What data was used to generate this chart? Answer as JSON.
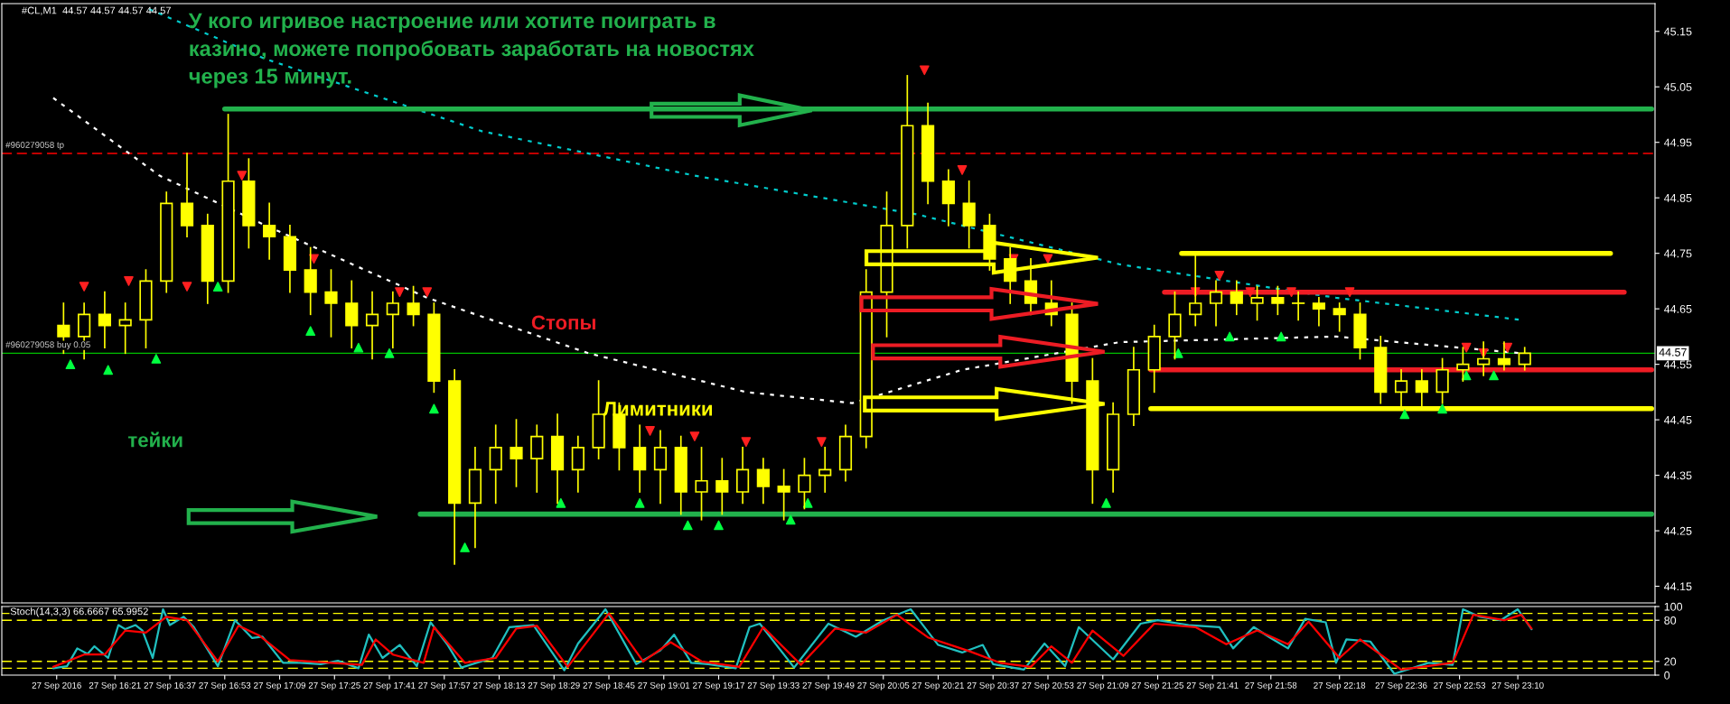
{
  "chart_data": [
    {
      "type": "candlestick",
      "color": "#ffff00",
      "x": [
        "2016-09-27T16:06",
        "2016-09-27T16:12",
        "2016-09-27T16:18",
        "2016-09-27T16:24",
        "2016-09-27T16:30",
        "2016-09-27T16:36",
        "2016-09-27T16:42",
        "2016-09-27T16:48",
        "2016-09-27T16:54",
        "2016-09-27T17:00",
        "2016-09-27T17:06",
        "2016-09-27T17:12",
        "2016-09-27T17:18",
        "2016-09-27T17:24",
        "2016-09-27T17:30",
        "2016-09-27T17:36",
        "2016-09-27T17:42",
        "2016-09-27T17:48",
        "2016-09-27T17:54",
        "2016-09-27T18:00",
        "2016-09-27T18:06",
        "2016-09-27T18:12",
        "2016-09-27T18:18",
        "2016-09-27T18:24",
        "2016-09-27T18:30",
        "2016-09-27T18:36",
        "2016-09-27T18:42",
        "2016-09-27T18:48",
        "2016-09-27T18:54",
        "2016-09-27T19:00",
        "2016-09-27T19:06",
        "2016-09-27T19:12",
        "2016-09-27T19:18",
        "2016-09-27T19:24",
        "2016-09-27T19:30",
        "2016-09-27T19:36",
        "2016-09-27T19:42",
        "2016-09-27T19:48",
        "2016-09-27T19:54",
        "2016-09-27T20:00",
        "2016-09-27T20:06",
        "2016-09-27T20:12",
        "2016-09-27T20:18",
        "2016-09-27T20:24",
        "2016-09-27T20:30",
        "2016-09-27T20:36",
        "2016-09-27T20:42",
        "2016-09-27T20:48",
        "2016-09-27T20:54",
        "2016-09-27T21:00",
        "2016-09-27T21:06",
        "2016-09-27T21:12",
        "2016-09-27T21:18",
        "2016-09-27T21:24",
        "2016-09-27T21:30",
        "2016-09-27T21:36",
        "2016-09-27T21:42",
        "2016-09-27T21:48",
        "2016-09-27T21:54",
        "2016-09-27T22:00",
        "2016-09-27T22:06",
        "2016-09-27T22:12",
        "2016-09-27T22:18",
        "2016-09-27T22:24",
        "2016-09-27T22:30",
        "2016-09-27T22:36",
        "2016-09-27T22:42",
        "2016-09-27T22:48",
        "2016-09-27T22:54",
        "2016-09-27T23:00",
        "2016-09-27T23:06",
        "2016-09-27T23:12"
      ],
      "ohlc": [
        [
          44.62,
          44.66,
          44.57,
          44.6
        ],
        [
          44.6,
          44.66,
          44.56,
          44.64
        ],
        [
          44.64,
          44.68,
          44.58,
          44.62
        ],
        [
          44.62,
          44.66,
          44.57,
          44.63
        ],
        [
          44.63,
          44.72,
          44.58,
          44.7
        ],
        [
          44.7,
          44.86,
          44.68,
          44.84
        ],
        [
          44.84,
          44.93,
          44.78,
          44.8
        ],
        [
          44.8,
          44.82,
          44.66,
          44.7
        ],
        [
          44.7,
          45.0,
          44.68,
          44.88
        ],
        [
          44.88,
          44.92,
          44.76,
          44.8
        ],
        [
          44.8,
          44.84,
          44.74,
          44.78
        ],
        [
          44.78,
          44.8,
          44.68,
          44.72
        ],
        [
          44.72,
          44.76,
          44.64,
          44.68
        ],
        [
          44.68,
          44.72,
          44.6,
          44.66
        ],
        [
          44.66,
          44.7,
          44.58,
          44.62
        ],
        [
          44.62,
          44.68,
          44.56,
          44.64
        ],
        [
          44.64,
          44.68,
          44.58,
          44.66
        ],
        [
          44.66,
          44.69,
          44.62,
          44.64
        ],
        [
          44.64,
          44.66,
          44.5,
          44.52
        ],
        [
          44.52,
          44.54,
          44.19,
          44.3
        ],
        [
          44.3,
          44.4,
          44.22,
          44.36
        ],
        [
          44.36,
          44.44,
          44.3,
          44.4
        ],
        [
          44.4,
          44.45,
          44.33,
          44.38
        ],
        [
          44.38,
          44.44,
          44.32,
          44.42
        ],
        [
          44.42,
          44.46,
          44.3,
          44.36
        ],
        [
          44.36,
          44.42,
          44.32,
          44.4
        ],
        [
          44.4,
          44.52,
          44.38,
          44.46
        ],
        [
          44.46,
          44.48,
          44.36,
          44.4
        ],
        [
          44.4,
          44.44,
          44.32,
          44.36
        ],
        [
          44.36,
          44.43,
          44.3,
          44.4
        ],
        [
          44.4,
          44.42,
          44.28,
          44.32
        ],
        [
          44.32,
          44.4,
          44.27,
          44.34
        ],
        [
          44.34,
          44.38,
          44.28,
          44.32
        ],
        [
          44.32,
          44.4,
          44.3,
          44.36
        ],
        [
          44.36,
          44.38,
          44.3,
          44.33
        ],
        [
          44.33,
          44.36,
          44.27,
          44.32
        ],
        [
          44.32,
          44.38,
          44.29,
          44.35
        ],
        [
          44.35,
          44.4,
          44.32,
          44.36
        ],
        [
          44.36,
          44.44,
          44.34,
          44.42
        ],
        [
          44.42,
          44.72,
          44.4,
          44.68
        ],
        [
          44.68,
          44.86,
          44.6,
          44.8
        ],
        [
          44.8,
          45.07,
          44.76,
          44.98
        ],
        [
          44.98,
          45.02,
          44.84,
          44.88
        ],
        [
          44.88,
          44.9,
          44.8,
          44.84
        ],
        [
          44.84,
          44.88,
          44.76,
          44.8
        ],
        [
          44.8,
          44.82,
          44.72,
          44.74
        ],
        [
          44.74,
          44.76,
          44.66,
          44.7
        ],
        [
          44.7,
          44.74,
          44.64,
          44.66
        ],
        [
          44.66,
          44.7,
          44.62,
          44.64
        ],
        [
          44.64,
          44.66,
          44.48,
          44.52
        ],
        [
          44.52,
          44.56,
          44.3,
          44.36
        ],
        [
          44.36,
          44.48,
          44.32,
          44.46
        ],
        [
          44.46,
          44.58,
          44.44,
          44.54
        ],
        [
          44.54,
          44.62,
          44.5,
          44.6
        ],
        [
          44.6,
          44.68,
          44.56,
          44.64
        ],
        [
          44.64,
          44.75,
          44.62,
          44.66
        ],
        [
          44.66,
          44.7,
          44.62,
          44.68
        ],
        [
          44.68,
          44.7,
          44.64,
          44.66
        ],
        [
          44.66,
          44.69,
          44.63,
          44.67
        ],
        [
          44.67,
          44.69,
          44.64,
          44.66
        ],
        [
          44.66,
          44.68,
          44.63,
          44.66
        ],
        [
          44.66,
          44.67,
          44.62,
          44.65
        ],
        [
          44.65,
          44.66,
          44.61,
          44.64
        ],
        [
          44.64,
          44.66,
          44.56,
          44.58
        ],
        [
          44.58,
          44.6,
          44.48,
          44.5
        ],
        [
          44.5,
          44.54,
          44.47,
          44.52
        ],
        [
          44.52,
          44.54,
          44.47,
          44.5
        ],
        [
          44.5,
          44.56,
          44.48,
          44.54
        ],
        [
          44.54,
          44.58,
          44.52,
          44.55
        ],
        [
          44.55,
          44.59,
          44.53,
          44.56
        ],
        [
          44.56,
          44.59,
          44.54,
          44.55
        ],
        [
          44.55,
          44.58,
          44.54,
          44.57
        ]
      ],
      "series": [
        {
          "type": "line",
          "color": "#00cccc",
          "line_style": "dotted",
          "x": [
            "2016-09-27T16:31",
            "2016-09-27T17:05",
            "2016-09-27T18:08",
            "2016-09-27T19:10",
            "2016-09-27T20:15",
            "2016-09-27T21:14",
            "2016-09-27T22:17",
            "2016-09-27T23:11"
          ],
          "values": [
            45.19,
            45.1,
            44.97,
            44.89,
            44.82,
            44.73,
            44.67,
            44.63
          ]
        },
        {
          "type": "line",
          "color": "#ffffff",
          "line_style": "dotted",
          "x": [
            "2016-09-27T16:03",
            "2016-09-27T16:34",
            "2016-09-27T17:05",
            "2016-09-27T17:52",
            "2016-09-27T18:39",
            "2016-09-27T19:25",
            "2016-09-27T19:56",
            "2016-09-27T20:28",
            "2016-09-27T21:14",
            "2016-09-27T22:17",
            "2016-09-27T23:11"
          ],
          "values": [
            45.03,
            44.89,
            44.8,
            44.67,
            44.57,
            44.5,
            44.48,
            44.54,
            44.59,
            44.6,
            44.57
          ]
        },
        {
          "type": "line",
          "color": "#22b14c",
          "line_style": "solid",
          "x": [
            "2016-09-27T16:53",
            "2016-09-27T23:49"
          ],
          "values": [
            45.01,
            45.01
          ]
        },
        {
          "type": "line",
          "color": "#22b14c",
          "line_style": "solid",
          "x": [
            "2016-09-27T17:50",
            "2016-09-27T23:49"
          ],
          "values": [
            44.28,
            44.28
          ]
        },
        {
          "type": "line",
          "color": "#ffff00",
          "line_style": "solid",
          "x": [
            "2016-09-27T21:32",
            "2016-09-27T23:37"
          ],
          "values": [
            44.75,
            44.75
          ]
        },
        {
          "type": "line",
          "color": "#ed1c24",
          "line_style": "solid",
          "x": [
            "2016-09-27T21:27",
            "2016-09-27T23:41"
          ],
          "values": [
            44.68,
            44.68
          ]
        },
        {
          "type": "line",
          "color": "#ed1c24",
          "line_style": "solid",
          "x": [
            "2016-09-27T21:23",
            "2016-09-27T23:49"
          ],
          "values": [
            44.54,
            44.54
          ]
        },
        {
          "type": "line",
          "color": "#ffff00",
          "line_style": "solid",
          "x": [
            "2016-09-27T21:23",
            "2016-09-27T23:49"
          ],
          "values": [
            44.47,
            44.47
          ]
        },
        {
          "type": "scatter",
          "color": "#00ff40",
          "marker": "triangle",
          "x": [
            "2016-09-27T16:08",
            "2016-09-27T16:19",
            "2016-09-27T16:33",
            "2016-09-27T16:51",
            "2016-09-27T17:18",
            "2016-09-27T17:32",
            "2016-09-27T17:41",
            "2016-09-27T17:54",
            "2016-09-27T18:03",
            "2016-09-27T18:31",
            "2016-09-27T18:54",
            "2016-09-27T19:08",
            "2016-09-27T19:17",
            "2016-09-27T19:38",
            "2016-09-27T19:43",
            "2016-09-27T21:10",
            "2016-09-27T21:31",
            "2016-09-27T21:46",
            "2016-09-27T22:01",
            "2016-09-27T22:37",
            "2016-09-27T22:48",
            "2016-09-27T22:55",
            "2016-09-27T23:03"
          ],
          "values": [
            44.55,
            44.54,
            44.56,
            44.69,
            44.61,
            44.58,
            44.57,
            44.47,
            44.22,
            44.3,
            44.3,
            44.26,
            44.26,
            44.27,
            44.3,
            44.3,
            44.57,
            44.6,
            44.6,
            44.46,
            44.47,
            44.53,
            44.53
          ]
        },
        {
          "type": "scatter",
          "color": "#ff2020",
          "marker": "triangle_down",
          "x": [
            "2016-09-27T16:12",
            "2016-09-27T16:25",
            "2016-09-27T16:42",
            "2016-09-27T16:58",
            "2016-09-27T17:19",
            "2016-09-27T17:44",
            "2016-09-27T17:52",
            "2016-09-27T18:57",
            "2016-09-27T19:10",
            "2016-09-27T19:25",
            "2016-09-27T19:47",
            "2016-09-27T20:17",
            "2016-09-27T20:28",
            "2016-09-27T20:43",
            "2016-09-27T20:53",
            "2016-09-27T21:36",
            "2016-09-27T21:43",
            "2016-09-27T21:52",
            "2016-09-27T22:04",
            "2016-09-27T22:21",
            "2016-09-27T22:55",
            "2016-09-27T23:00",
            "2016-09-27T23:07"
          ],
          "values": [
            44.69,
            44.7,
            44.69,
            44.89,
            44.74,
            44.68,
            44.68,
            44.43,
            44.42,
            44.41,
            44.41,
            45.08,
            44.9,
            44.74,
            44.74,
            44.68,
            44.71,
            44.68,
            44.68,
            44.68,
            44.58,
            44.57,
            44.58
          ]
        }
      ],
      "xlim": [
        "2016-09-27T15:48",
        "2016-09-27T23:50"
      ],
      "ylim": [
        44.12,
        45.2
      ],
      "yticks": [
        44.15,
        44.25,
        44.35,
        44.45,
        44.55,
        44.65,
        44.75,
        44.85,
        44.95,
        45.05,
        45.15
      ],
      "tick_labels": "y",
      "grid": false,
      "ref_lines": [
        {
          "axis": "y",
          "value": 44.93,
          "label": "#960279058 tp",
          "color": "#ff0000",
          "line_style": "dashed"
        },
        {
          "axis": "y",
          "value": 44.57,
          "label": "#960279058 buy 0.05",
          "color": "#00c000",
          "line_style": "solid"
        }
      ],
      "annotations": [
        "#CL,M1  44.57 44.57 44.57 44.57",
        "У кого игривое настроение или хотите поиграть в\nказино, можете попробовать заработать на новостях\nчерез 15 минут.",
        "Стопы",
        "Лимитники",
        "тейки",
        {
          "text": "44.57",
          "x": "2016-09-27T23:50",
          "y": 44.57
        }
      ]
    },
    {
      "type": "line",
      "series": [
        {
          "color": "#20c0c0",
          "x": [
            "2016-09-27T16:03",
            "2016-09-27T16:07",
            "2016-09-27T16:10",
            "2016-09-27T16:13",
            "2016-09-27T16:15",
            "2016-09-27T16:19",
            "2016-09-27T16:22",
            "2016-09-27T16:24",
            "2016-09-27T16:27",
            "2016-09-27T16:29",
            "2016-09-27T16:32",
            "2016-09-27T16:35",
            "2016-09-27T16:37",
            "2016-09-27T16:41",
            "2016-09-27T16:44",
            "2016-09-27T16:51",
            "2016-09-27T16:56",
            "2016-09-27T17:01",
            "2016-09-27T17:04",
            "2016-09-27T17:10",
            "2016-09-27T17:15",
            "2016-09-27T17:21",
            "2016-09-27T17:26",
            "2016-09-27T17:32",
            "2016-09-27T17:35",
            "2016-09-27T17:39",
            "2016-09-27T17:44",
            "2016-09-27T17:49",
            "2016-09-27T17:53",
            "2016-09-27T17:58",
            "2016-09-27T18:02",
            "2016-09-27T18:11",
            "2016-09-27T18:16",
            "2016-09-27T18:23",
            "2016-09-27T18:32",
            "2016-09-27T18:36",
            "2016-09-27T18:44",
            "2016-09-27T18:53",
            "2016-09-27T19:00",
            "2016-09-27T19:04",
            "2016-09-27T19:09",
            "2016-09-27T19:14",
            "2016-09-27T19:22",
            "2016-09-27T19:26",
            "2016-09-27T19:29",
            "2016-09-27T19:39",
            "2016-09-27T19:49",
            "2016-09-27T19:57",
            "2016-09-27T20:05",
            "2016-09-27T20:13",
            "2016-09-27T20:21",
            "2016-09-27T20:28",
            "2016-09-27T20:34",
            "2016-09-27T20:37",
            "2016-09-27T20:46",
            "2016-09-27T20:52",
            "2016-09-27T20:58",
            "2016-09-27T21:02",
            "2016-09-27T21:12",
            "2016-09-27T21:20",
            "2016-09-27T21:25",
            "2016-09-27T21:34",
            "2016-09-27T21:43",
            "2016-09-27T21:47",
            "2016-09-27T21:53",
            "2016-09-27T21:58",
            "2016-09-27T22:03",
            "2016-09-27T22:08",
            "2016-09-27T22:14",
            "2016-09-27T22:17",
            "2016-09-27T22:20",
            "2016-09-27T22:27",
            "2016-09-27T22:34",
            "2016-09-27T22:44",
            "2016-09-27T22:51",
            "2016-09-27T22:54",
            "2016-09-27T22:59",
            "2016-09-27T23:05",
            "2016-09-27T23:10",
            "2016-09-27T23:14"
          ],
          "values": [
            10,
            13,
            39,
            31,
            42,
            25,
            73,
            67,
            73,
            65,
            25,
            96,
            73,
            85,
            70,
            13,
            80,
            54,
            56,
            18,
            18,
            16,
            21,
            10,
            59,
            25,
            44,
            13,
            77,
            44,
            11,
            25,
            70,
            73,
            7,
            46,
            96,
            16,
            36,
            59,
            18,
            16,
            10,
            70,
            75,
            11,
            75,
            56,
            80,
            96,
            44,
            33,
            44,
            16,
            8,
            46,
            13,
            70,
            23,
            75,
            80,
            73,
            70,
            39,
            70,
            54,
            39,
            82,
            77,
            18,
            52,
            49,
            2,
            18,
            15,
            96,
            85,
            80,
            96,
            67
          ]
        },
        {
          "color": "#ff0000",
          "x": [
            "2016-09-27T16:03",
            "2016-09-27T16:12",
            "2016-09-27T16:18",
            "2016-09-27T16:24",
            "2016-09-27T16:30",
            "2016-09-27T16:36",
            "2016-09-27T16:42",
            "2016-09-27T16:51",
            "2016-09-27T16:57",
            "2016-09-27T17:03",
            "2016-09-27T17:12",
            "2016-09-27T17:24",
            "2016-09-27T17:33",
            "2016-09-27T17:37",
            "2016-09-27T17:42",
            "2016-09-27T17:51",
            "2016-09-27T17:54",
            "2016-09-27T18:03",
            "2016-09-27T18:12",
            "2016-09-27T18:18",
            "2016-09-27T18:24",
            "2016-09-27T18:33",
            "2016-09-27T18:45",
            "2016-09-27T18:55",
            "2016-09-27T19:03",
            "2016-09-27T19:12",
            "2016-09-27T19:23",
            "2016-09-27T19:30",
            "2016-09-27T19:41",
            "2016-09-27T19:51",
            "2016-09-27T20:00",
            "2016-09-27T20:09",
            "2016-09-27T20:18",
            "2016-09-27T20:30",
            "2016-09-27T20:39",
            "2016-09-27T20:48",
            "2016-09-27T20:54",
            "2016-09-27T21:00",
            "2016-09-27T21:06",
            "2016-09-27T21:15",
            "2016-09-27T21:24",
            "2016-09-27T21:36",
            "2016-09-27T21:45",
            "2016-09-27T21:54",
            "2016-09-27T22:03",
            "2016-09-27T22:09",
            "2016-09-27T22:18",
            "2016-09-27T22:24",
            "2016-09-27T22:36",
            "2016-09-27T22:51",
            "2016-09-27T22:57",
            "2016-09-27T23:06",
            "2016-09-27T23:11",
            "2016-09-27T23:14"
          ],
          "values": [
            12,
            30,
            30,
            65,
            62,
            85,
            80,
            20,
            72,
            58,
            22,
            18,
            15,
            52,
            30,
            18,
            70,
            18,
            25,
            68,
            72,
            12,
            90,
            20,
            48,
            20,
            12,
            70,
            15,
            68,
            62,
            88,
            55,
            35,
            18,
            12,
            42,
            18,
            65,
            28,
            75,
            70,
            45,
            65,
            45,
            78,
            25,
            52,
            8,
            18,
            88,
            80,
            88,
            68
          ]
        }
      ],
      "xlim": [
        "2016-09-27T15:48",
        "2016-09-27T23:50"
      ],
      "ylim": [
        0,
        100
      ],
      "yticks": [
        0,
        20,
        80,
        100
      ],
      "xticks": [
        {
          "value": "2016-09-27T16:04",
          "label": "27 Sep 2016"
        },
        {
          "value": "2016-09-27T16:21",
          "label": "27 Sep 16:21"
        },
        {
          "value": "2016-09-27T16:37",
          "label": "27 Sep 16:37"
        },
        {
          "value": "2016-09-27T16:53",
          "label": "27 Sep 16:53"
        },
        {
          "value": "2016-09-27T17:09",
          "label": "27 Sep 17:09"
        },
        {
          "value": "2016-09-27T17:25",
          "label": "27 Sep 17:25"
        },
        {
          "value": "2016-09-27T17:41",
          "label": "27 Sep 17:41"
        },
        {
          "value": "2016-09-27T17:57",
          "label": "27 Sep 17:57"
        },
        {
          "value": "2016-09-27T18:13",
          "label": "27 Sep 18:13"
        },
        {
          "value": "2016-09-27T18:29",
          "label": "27 Sep 18:29"
        },
        {
          "value": "2016-09-27T18:45",
          "label": "27 Sep 18:45"
        },
        {
          "value": "2016-09-27T19:01",
          "label": "27 Sep 19:01"
        },
        {
          "value": "2016-09-27T19:17",
          "label": "27 Sep 19:17"
        },
        {
          "value": "2016-09-27T19:33",
          "label": "27 Sep 19:33"
        },
        {
          "value": "2016-09-27T19:49",
          "label": "27 Sep 19:49"
        },
        {
          "value": "2016-09-27T20:05",
          "label": "27 Sep 20:05"
        },
        {
          "value": "2016-09-27T20:21",
          "label": "27 Sep 20:21"
        },
        {
          "value": "2016-09-27T20:37",
          "label": "27 Sep 20:37"
        },
        {
          "value": "2016-09-27T20:53",
          "label": "27 Sep 20:53"
        },
        {
          "value": "2016-09-27T21:09",
          "label": "27 Sep 21:09"
        },
        {
          "value": "2016-09-27T21:25",
          "label": "27 Sep 21:25"
        },
        {
          "value": "2016-09-27T21:41",
          "label": "27 Sep 21:41"
        },
        {
          "value": "2016-09-27T21:58",
          "label": "27 Sep 21:58"
        },
        {
          "value": "2016-09-27T22:18",
          "label": "27 Sep 22:18"
        },
        {
          "value": "2016-09-27T22:36",
          "label": "27 Sep 22:36"
        },
        {
          "value": "2016-09-27T22:53",
          "label": "27 Sep 22:53"
        },
        {
          "value": "2016-09-27T23:10",
          "label": "27 Sep 23:10"
        }
      ],
      "grid": false,
      "ref_lines": [
        {
          "axis": "y",
          "value": 90,
          "label": null,
          "color": "#ffff00",
          "line_style": "dashed"
        },
        {
          "axis": "y",
          "value": 80,
          "label": null,
          "color": "#ffff00",
          "line_style": "dashed"
        },
        {
          "axis": "y",
          "value": 20,
          "label": null,
          "color": "#ffff00",
          "line_style": "dashed"
        },
        {
          "axis": "y",
          "value": 10,
          "label": null,
          "color": "#ffff00",
          "line_style": "dashed"
        }
      ],
      "annotations": [
        "Stoch(14,3,3) 66.6667 65.9952"
      ]
    }
  ]
}
